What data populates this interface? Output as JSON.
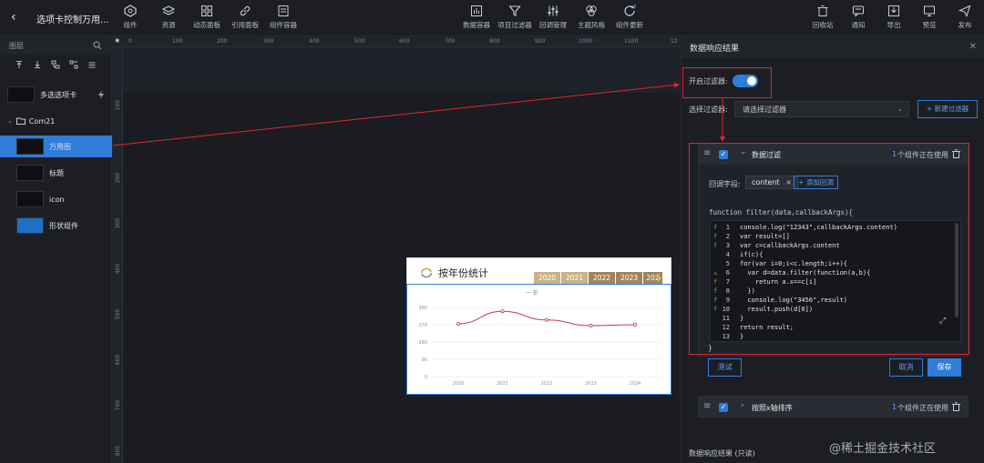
{
  "header": {
    "title": "选项卡控制万用...",
    "tools_left": [
      {
        "icon": "component-icon",
        "label": "组件"
      },
      {
        "icon": "layers-icon",
        "label": "资源"
      },
      {
        "icon": "grid-icon",
        "label": "动态面板"
      },
      {
        "icon": "link-icon",
        "label": "引用面板"
      },
      {
        "icon": "container-icon",
        "label": "组件容器"
      }
    ],
    "tools_center": [
      {
        "icon": "data-container-icon",
        "label": "数据容器"
      },
      {
        "icon": "filter-icon",
        "label": "项目过滤器"
      },
      {
        "icon": "sliders-icon",
        "label": "回调管理"
      },
      {
        "icon": "palette-icon",
        "label": "主题风格"
      },
      {
        "icon": "refresh-icon",
        "label": "组件更新"
      }
    ],
    "tools_right": [
      {
        "icon": "trash-icon",
        "label": "回收站"
      },
      {
        "icon": "bell-icon",
        "label": "通知"
      },
      {
        "icon": "export-icon",
        "label": "导出"
      },
      {
        "icon": "preview-icon",
        "label": "预览"
      },
      {
        "icon": "send-icon",
        "label": "发布"
      }
    ]
  },
  "layers": {
    "title": "图层",
    "items": [
      {
        "label": "多选选项卡"
      },
      {
        "label": "Com21"
      },
      {
        "label": "万用图"
      },
      {
        "label": "标题"
      },
      {
        "label": "icon"
      },
      {
        "label": "形状组件"
      }
    ]
  },
  "ruler": {
    "top": [
      "0",
      "100",
      "200",
      "300",
      "400",
      "500",
      "600",
      "700",
      "800",
      "900",
      "1000",
      "1100",
      "12"
    ],
    "left": [
      "100",
      "200",
      "300",
      "400",
      "500",
      "600",
      "700",
      "800"
    ]
  },
  "chart_card": {
    "title": "按年份统计",
    "tabs": [
      "2020",
      "2021",
      "2022",
      "2023",
      "202"
    ],
    "legend": "一 折"
  },
  "chart_data": {
    "type": "line",
    "categories": [
      "2020",
      "2021",
      "2022",
      "2023",
      "2024"
    ],
    "values": [
      275,
      340,
      295,
      265,
      270
    ],
    "yticks": [
      "360",
      "270",
      "180",
      "90",
      "0"
    ],
    "ylim": [
      0,
      360
    ],
    "line_color": "#c23f47"
  },
  "right_panel": {
    "title": "数据响应结果",
    "enable_filter_label": "开启过滤器:",
    "select_filter_label": "选择过滤器:",
    "select_placeholder": "请选择过滤器",
    "new_filter_button": "+ 新建过滤器",
    "filter1": {
      "name": "数据过滤",
      "usage_count": "1",
      "usage_text": "个组件正在使用",
      "callback_field_label": "回调字段:",
      "tag": "content",
      "add_field_button": "+ 添加回调",
      "func_signature": "function filter(data,callbackArgs){",
      "code": [
        {
          "n": "1",
          "m": "f",
          "t": "console.log(\"12343\",callbackArgs.content)"
        },
        {
          "n": "2",
          "m": "f",
          "t": "var result=[]"
        },
        {
          "n": "3",
          "m": "f",
          "t": "var c=callbackArgs.content"
        },
        {
          "n": "4",
          "m": "",
          "t": "if(c){"
        },
        {
          "n": "5",
          "m": "",
          "t": "for(var i=0;i<c.length;i++){"
        },
        {
          "n": "6",
          "m": "⚠",
          "t": "  var d=data.filter(function(a,b){"
        },
        {
          "n": "7",
          "m": "f",
          "t": "    return a.x==c[i]"
        },
        {
          "n": "8",
          "m": "f",
          "t": "  })"
        },
        {
          "n": "9",
          "m": "f",
          "t": "  console.log(\"3456\",result)"
        },
        {
          "n": "10",
          "m": "f",
          "t": "  result.push(d[0])"
        },
        {
          "n": "11",
          "m": "",
          "t": "}"
        },
        {
          "n": "12",
          "m": "",
          "t": "return result;"
        },
        {
          "n": "13",
          "m": "",
          "t": "}"
        }
      ],
      "closing_brace": "}",
      "test_button": "测试",
      "cancel_button": "取消",
      "save_button": "保存"
    },
    "filter2": {
      "name": "按照x轴排序",
      "usage_count": "1",
      "usage_text": "个组件正在使用"
    },
    "result_readonly_label": "数据响应结果 (只读)"
  },
  "watermark": "@稀土掘金技术社区",
  "colors": {
    "accent": "#2f7dd8",
    "annotation": "#e0272b"
  }
}
